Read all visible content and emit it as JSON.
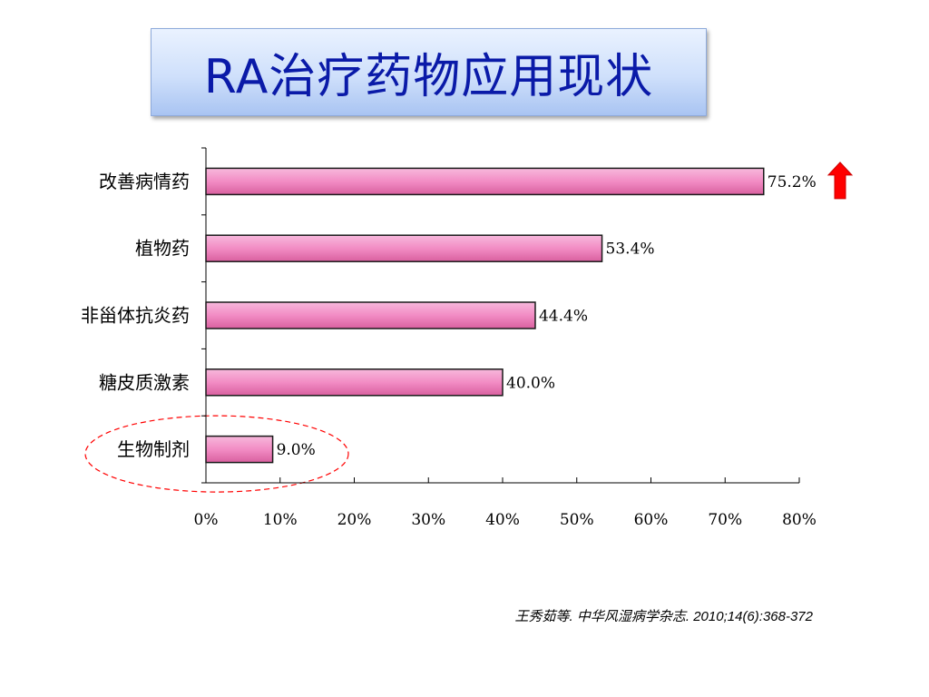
{
  "title": "RA治疗药物应用现状",
  "citation": "王秀茹等. 中华风湿病学杂志. 2010;14(6):368-372",
  "chart_data": {
    "type": "bar",
    "orientation": "horizontal",
    "categories": [
      "改善病情药",
      "植物药",
      "非甾体抗炎药",
      "糖皮质激素",
      "生物制剂"
    ],
    "values": [
      75.2,
      53.4,
      44.4,
      40.0,
      9.0
    ],
    "value_labels": [
      "75.2%",
      "53.4%",
      "44.4%",
      "40.0%",
      "9.0%"
    ],
    "xlim": [
      0,
      80
    ],
    "xticks": [
      0,
      10,
      20,
      30,
      40,
      50,
      60,
      70,
      80
    ],
    "xtick_labels": [
      "0%",
      "10%",
      "20%",
      "30%",
      "40%",
      "50%",
      "60%",
      "70%",
      "80%"
    ],
    "grid": false,
    "colors": {
      "bar_fill": "#f28cc4",
      "bar_edge": "#1a1a1a",
      "arrow": "#ff0000",
      "highlight": "#ff0000"
    },
    "annotations": [
      {
        "type": "arrow",
        "icon": "up-arrow-icon",
        "category": "改善病情药"
      },
      {
        "type": "dashed-ellipse",
        "category": "生物制剂"
      }
    ]
  }
}
